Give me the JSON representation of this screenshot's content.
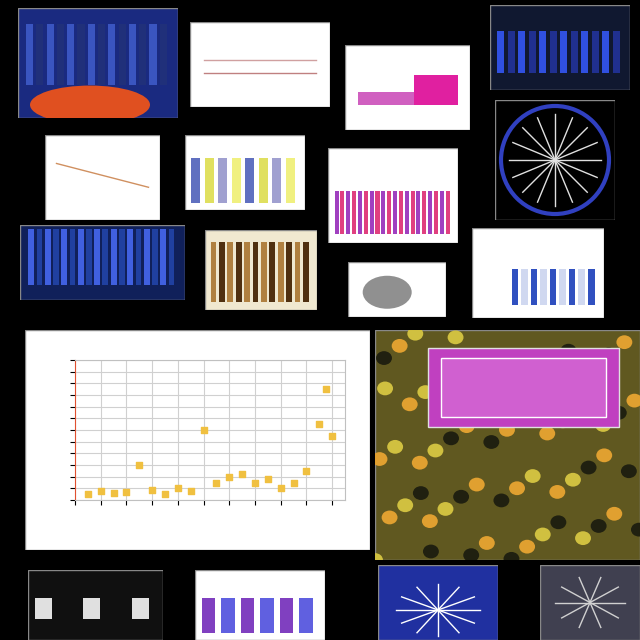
{
  "chart_data": {
    "type": "scatter",
    "color": "#f0c040",
    "marker": "s",
    "grid": true,
    "tick_labels": false,
    "x": [
      1,
      2,
      3,
      4,
      5,
      6,
      7,
      8,
      9,
      10,
      11,
      12,
      13,
      14,
      15,
      16,
      17,
      18,
      19,
      19.5,
      20
    ],
    "values": [
      0.5,
      0.8,
      0.6,
      0.7,
      3.0,
      0.9,
      0.5,
      1.0,
      0.8,
      6.0,
      1.5,
      2.0,
      2.2,
      1.5,
      1.8,
      1.0,
      1.5,
      2.5,
      6.5,
      9.5,
      5.5
    ],
    "xlim": [
      0,
      21
    ],
    "ylim": [
      0,
      12
    ],
    "xticks": [
      0,
      2,
      4,
      6,
      8,
      10,
      12,
      14,
      16,
      18,
      20
    ],
    "yticks": [
      0,
      1,
      2,
      3,
      4,
      5,
      6,
      7,
      8,
      9,
      10,
      11,
      12
    ]
  }
}
